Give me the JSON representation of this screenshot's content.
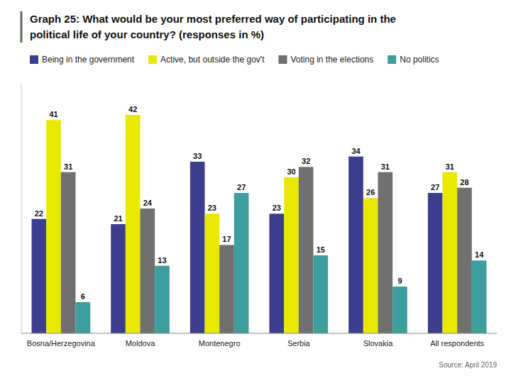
{
  "chart_data": {
    "type": "bar",
    "title": [
      "Graph 25: What would be your most preferred way of participating in the",
      "political life of your country? (responses in %)"
    ],
    "categories": [
      "Bosna/Herzegovina",
      "Moldova",
      "Montenegro",
      "Serbia",
      "Slovakia",
      "All respondents"
    ],
    "series": [
      {
        "name": "Being in the government",
        "color": "#3d3d8f",
        "values": [
          22,
          21,
          33,
          23,
          34,
          27
        ]
      },
      {
        "name": "Active, but outside the gov't",
        "color": "#e8e800",
        "values": [
          41,
          42,
          23,
          30,
          26,
          31
        ]
      },
      {
        "name": "Voting in the elections",
        "color": "#707070",
        "values": [
          31,
          24,
          17,
          32,
          31,
          28
        ]
      },
      {
        "name": "No politics",
        "color": "#3d9e9e",
        "values": [
          6,
          13,
          27,
          15,
          9,
          14
        ]
      }
    ],
    "ylim": [
      0,
      48
    ],
    "yticks": [],
    "tick_labels": "x",
    "data_labels": true,
    "grid": false,
    "legend": "top-left",
    "annotations": [
      "Source: April 2019"
    ]
  }
}
